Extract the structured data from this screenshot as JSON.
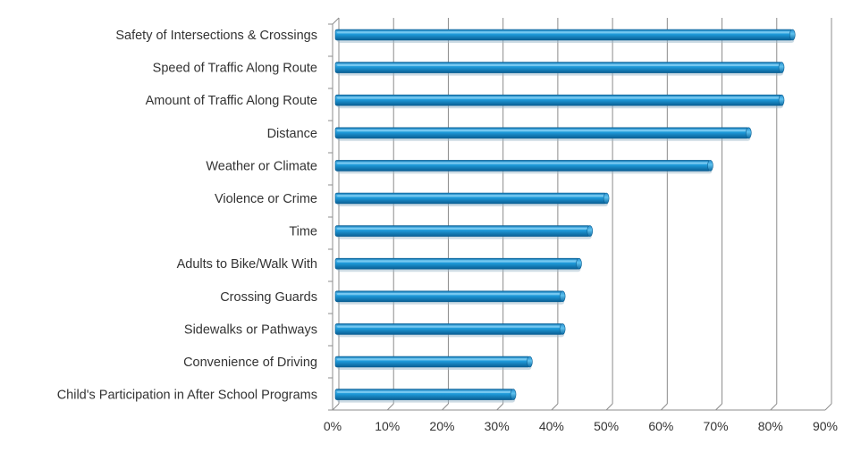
{
  "chart_data": {
    "type": "bar",
    "orientation": "horizontal",
    "title": "",
    "xlabel": "",
    "ylabel": "",
    "categories": [
      "Safety of Intersections & Crossings",
      "Speed of Traffic Along Route",
      "Amount of Traffic Along Route",
      "Distance",
      "Weather or Climate",
      "Violence or Crime",
      "Time",
      "Adults to Bike/Walk With",
      "Crossing Guards",
      "Sidewalks or Pathways",
      "Convenience of Driving",
      "Child's Participation in After School Programs"
    ],
    "values": [
      84,
      82,
      82,
      76,
      69,
      50,
      47,
      45,
      42,
      42,
      36,
      33
    ],
    "xlim": [
      0,
      90
    ],
    "ticks": [
      0,
      10,
      20,
      30,
      40,
      50,
      60,
      70,
      80,
      90
    ],
    "tick_labels": [
      "0%",
      "10%",
      "20%",
      "30%",
      "40%",
      "50%",
      "60%",
      "70%",
      "80%",
      "90%"
    ],
    "grid": true,
    "legend": "none",
    "colors": {
      "bar": "#1591d2",
      "bar_highlight": "#7fcdf2",
      "bar_shadow": "#0b5f93",
      "grid": "#8c8c8c",
      "text": "#333333"
    }
  }
}
